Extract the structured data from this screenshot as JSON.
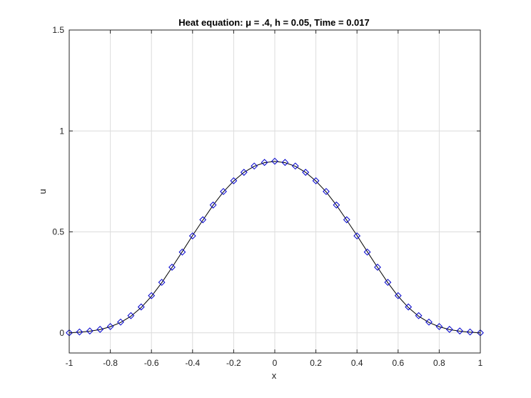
{
  "chart_data": {
    "type": "line",
    "title": "Heat equation: μ = .4, h = 0.05, Time = 0.017",
    "xlabel": "x",
    "ylabel": "u",
    "xlim": [
      -1,
      1
    ],
    "ylim": [
      -0.1,
      1.5
    ],
    "grid": true,
    "xticks": [
      -1,
      -0.8,
      -0.6,
      -0.4,
      -0.2,
      0,
      0.2,
      0.4,
      0.6,
      0.8,
      1
    ],
    "xtick_labels": [
      "-1",
      "-0.8",
      "-0.6",
      "-0.4",
      "-0.2",
      "0",
      "0.2",
      "0.4",
      "0.6",
      "0.8",
      "1"
    ],
    "yticks": [
      0,
      0.5,
      1,
      1.5
    ],
    "ytick_labels": [
      "0",
      "0.5",
      "1",
      "1.5"
    ],
    "series": [
      {
        "style": "line",
        "color": "#000000",
        "x": [
          -1,
          -0.95,
          -0.9,
          -0.85,
          -0.8,
          -0.75,
          -0.7,
          -0.65,
          -0.6,
          -0.55,
          -0.5,
          -0.45,
          -0.4,
          -0.35,
          -0.3,
          -0.25,
          -0.2,
          -0.15,
          -0.1,
          -0.05,
          0,
          0.05,
          0.1,
          0.15,
          0.2,
          0.25,
          0.3,
          0.35,
          0.4,
          0.45,
          0.5,
          0.55,
          0.6,
          0.65,
          0.7,
          0.75,
          0.8,
          0.85,
          0.9,
          0.95,
          1
        ],
        "values": [
          0,
          0.003,
          0.008,
          0.016,
          0.03,
          0.051,
          0.082,
          0.125,
          0.181,
          0.248,
          0.324,
          0.402,
          0.482,
          0.558,
          0.632,
          0.698,
          0.752,
          0.795,
          0.825,
          0.843,
          0.849,
          0.843,
          0.825,
          0.795,
          0.752,
          0.698,
          0.632,
          0.558,
          0.482,
          0.402,
          0.324,
          0.248,
          0.181,
          0.125,
          0.082,
          0.051,
          0.03,
          0.016,
          0.008,
          0.003,
          0
        ]
      },
      {
        "style": "marker",
        "marker": "diamond",
        "color": "#0000cc",
        "x": [
          -1,
          -0.95,
          -0.9,
          -0.85,
          -0.8,
          -0.75,
          -0.7,
          -0.65,
          -0.6,
          -0.55,
          -0.5,
          -0.45,
          -0.4,
          -0.35,
          -0.3,
          -0.25,
          -0.2,
          -0.15,
          -0.1,
          -0.05,
          0,
          0.05,
          0.1,
          0.15,
          0.2,
          0.25,
          0.3,
          0.35,
          0.4,
          0.45,
          0.5,
          0.55,
          0.6,
          0.65,
          0.7,
          0.75,
          0.8,
          0.85,
          0.9,
          0.95,
          1
        ],
        "values": [
          0,
          0.004,
          0.009,
          0.017,
          0.031,
          0.053,
          0.085,
          0.128,
          0.184,
          0.25,
          0.325,
          0.4,
          0.48,
          0.56,
          0.633,
          0.7,
          0.753,
          0.795,
          0.826,
          0.844,
          0.85,
          0.844,
          0.826,
          0.795,
          0.753,
          0.7,
          0.633,
          0.56,
          0.48,
          0.4,
          0.325,
          0.25,
          0.184,
          0.128,
          0.085,
          0.053,
          0.031,
          0.017,
          0.009,
          0.004,
          0
        ]
      }
    ]
  }
}
